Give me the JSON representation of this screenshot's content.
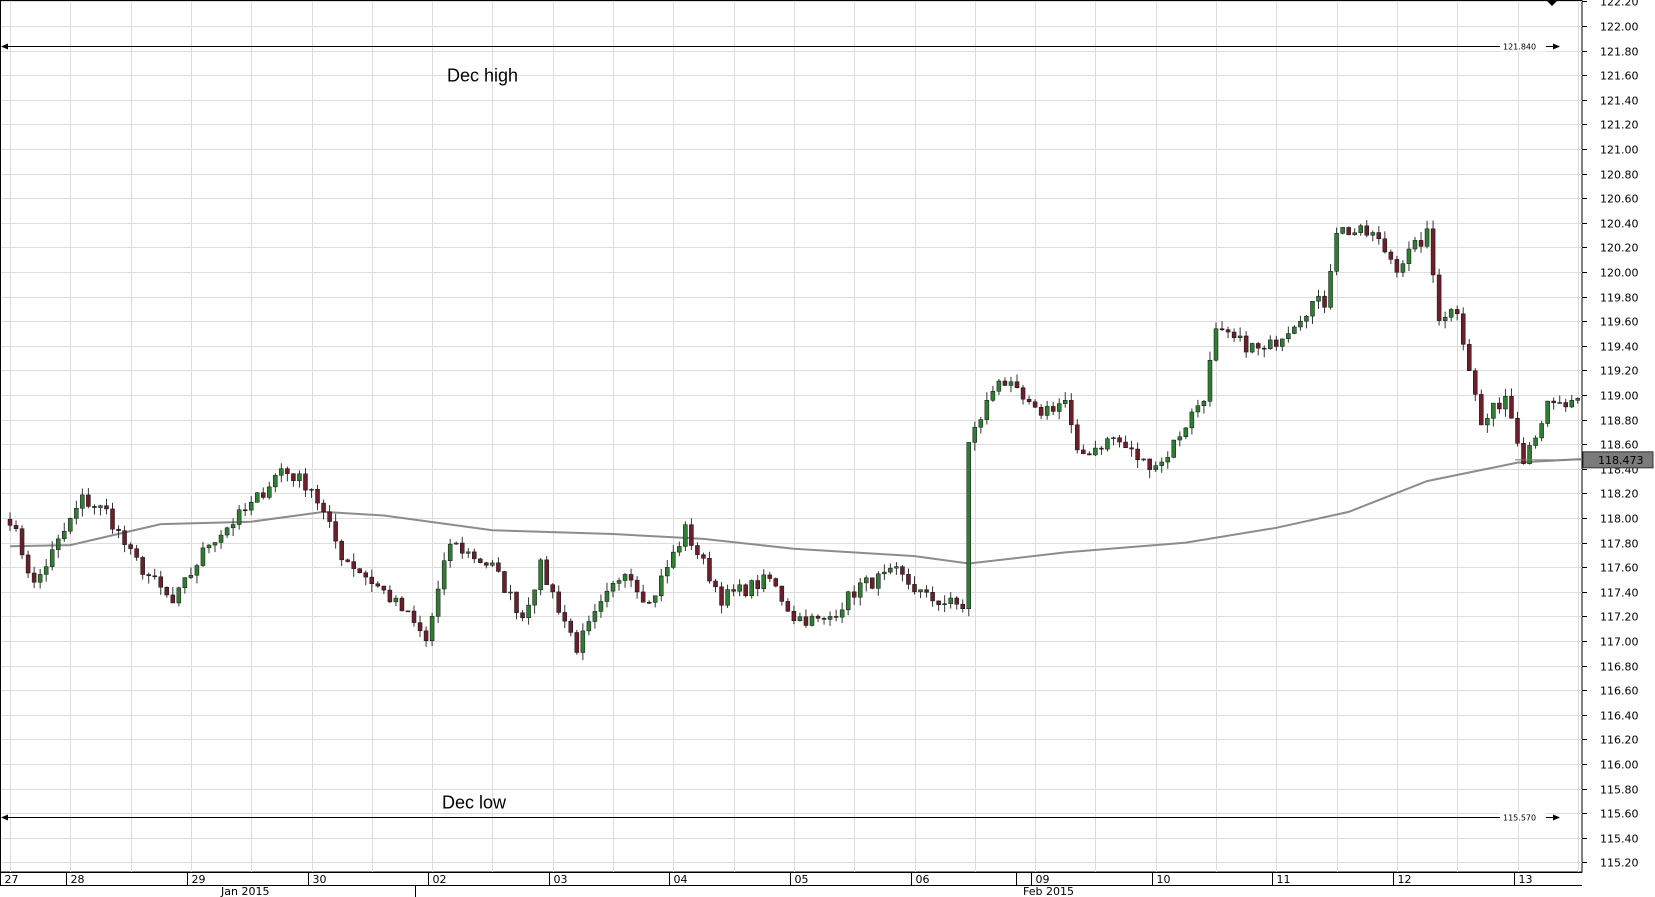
{
  "chart_data": {
    "type": "candlestick",
    "title": "",
    "xlabel": "",
    "ylabel": "",
    "ylim": [
      115.1,
      122.25
    ],
    "y_ticks": [
      "122.20",
      "122.00",
      "121.80",
      "121.60",
      "121.40",
      "121.20",
      "121.00",
      "120.80",
      "120.60",
      "120.40",
      "120.20",
      "120.00",
      "119.80",
      "119.60",
      "119.40",
      "119.20",
      "119.00",
      "118.80",
      "118.60",
      "118.40",
      "118.20",
      "118.00",
      "117.80",
      "117.60",
      "117.40",
      "117.20",
      "117.00",
      "116.80",
      "116.60",
      "116.40",
      "116.20",
      "116.00",
      "115.80",
      "115.60",
      "115.40",
      "115.20"
    ],
    "x_ticks": [
      {
        "label": "27",
        "index": 0
      },
      {
        "label": "28",
        "index": 11
      },
      {
        "label": "29",
        "index": 31
      },
      {
        "label": "30",
        "index": 51
      },
      {
        "label": "02",
        "index": 71
      },
      {
        "label": "03",
        "index": 91
      },
      {
        "label": "04",
        "index": 111
      },
      {
        "label": "05",
        "index": 131
      },
      {
        "label": "06",
        "index": 151
      },
      {
        "label": "09",
        "index": 171
      },
      {
        "label": "10",
        "index": 191
      },
      {
        "label": "11",
        "index": 211
      },
      {
        "label": "12",
        "index": 231
      },
      {
        "label": "13",
        "index": 251
      }
    ],
    "month_labels": [
      {
        "label": "Jan 2015",
        "index": 35
      },
      {
        "label": "Feb 2015",
        "index": 168
      }
    ],
    "hlines": [
      {
        "name": "Dec high",
        "value": 121.84,
        "value_label": "121.840"
      },
      {
        "name": "Dec low",
        "value": 115.57,
        "value_label": "115.570"
      }
    ],
    "current_price": {
      "value": 118.473,
      "label": "118.473"
    },
    "n_bars": 261,
    "key_prices": [
      {
        "index": 0,
        "price": 118.0
      },
      {
        "index": 4,
        "price": 117.45
      },
      {
        "index": 12,
        "price": 118.15
      },
      {
        "index": 16,
        "price": 118.05
      },
      {
        "index": 20,
        "price": 117.7
      },
      {
        "index": 27,
        "price": 117.3
      },
      {
        "index": 33,
        "price": 117.8
      },
      {
        "index": 40,
        "price": 118.1
      },
      {
        "index": 45,
        "price": 118.4
      },
      {
        "index": 50,
        "price": 118.25
      },
      {
        "index": 55,
        "price": 117.7
      },
      {
        "index": 62,
        "price": 117.4
      },
      {
        "index": 66,
        "price": 117.2
      },
      {
        "index": 69,
        "price": 117.0
      },
      {
        "index": 73,
        "price": 117.8
      },
      {
        "index": 80,
        "price": 117.6
      },
      {
        "index": 85,
        "price": 117.2
      },
      {
        "index": 88,
        "price": 117.6
      },
      {
        "index": 94,
        "price": 116.95
      },
      {
        "index": 102,
        "price": 117.6
      },
      {
        "index": 106,
        "price": 117.3
      },
      {
        "index": 112,
        "price": 117.9
      },
      {
        "index": 118,
        "price": 117.35
      },
      {
        "index": 126,
        "price": 117.5
      },
      {
        "index": 130,
        "price": 117.2
      },
      {
        "index": 135,
        "price": 117.15
      },
      {
        "index": 141,
        "price": 117.45
      },
      {
        "index": 147,
        "price": 117.55
      },
      {
        "index": 152,
        "price": 117.35
      },
      {
        "index": 158,
        "price": 117.28
      },
      {
        "index": 159,
        "price": 118.6
      },
      {
        "index": 164,
        "price": 119.15
      },
      {
        "index": 170,
        "price": 118.85
      },
      {
        "index": 175,
        "price": 118.95
      },
      {
        "index": 177,
        "price": 118.5
      },
      {
        "index": 183,
        "price": 118.65
      },
      {
        "index": 188,
        "price": 118.45
      },
      {
        "index": 191,
        "price": 118.45
      },
      {
        "index": 198,
        "price": 119.0
      },
      {
        "index": 200,
        "price": 119.5
      },
      {
        "index": 208,
        "price": 119.35
      },
      {
        "index": 216,
        "price": 119.75
      },
      {
        "index": 218,
        "price": 119.75
      },
      {
        "index": 220,
        "price": 120.35
      },
      {
        "index": 226,
        "price": 120.3
      },
      {
        "index": 230,
        "price": 120.05
      },
      {
        "index": 235,
        "price": 120.3
      },
      {
        "index": 237,
        "price": 119.65
      },
      {
        "index": 240,
        "price": 119.7
      },
      {
        "index": 244,
        "price": 118.75
      },
      {
        "index": 248,
        "price": 119.0
      },
      {
        "index": 251,
        "price": 118.5
      },
      {
        "index": 255,
        "price": 118.9
      }
    ],
    "moving_average": {
      "name": "",
      "points": [
        {
          "index": 0,
          "value": 117.77
        },
        {
          "index": 10,
          "value": 117.78
        },
        {
          "index": 25,
          "value": 117.95
        },
        {
          "index": 40,
          "value": 117.97
        },
        {
          "index": 52,
          "value": 118.05
        },
        {
          "index": 62,
          "value": 118.02
        },
        {
          "index": 80,
          "value": 117.9
        },
        {
          "index": 100,
          "value": 117.87
        },
        {
          "index": 115,
          "value": 117.83
        },
        {
          "index": 130,
          "value": 117.75
        },
        {
          "index": 150,
          "value": 117.69
        },
        {
          "index": 159,
          "value": 117.63
        },
        {
          "index": 175,
          "value": 117.72
        },
        {
          "index": 195,
          "value": 117.8
        },
        {
          "index": 210,
          "value": 117.92
        },
        {
          "index": 222,
          "value": 118.05
        },
        {
          "index": 235,
          "value": 118.3
        },
        {
          "index": 250,
          "value": 118.45
        },
        {
          "index": 261,
          "value": 118.48
        }
      ]
    }
  },
  "colors": {
    "up_body": "#2e7d32",
    "down_body": "#6b1f2b",
    "wick": "#333333",
    "ma_line": "#8c8c8c",
    "grid": "#dddddd",
    "price_box": "#7a7a7a"
  }
}
